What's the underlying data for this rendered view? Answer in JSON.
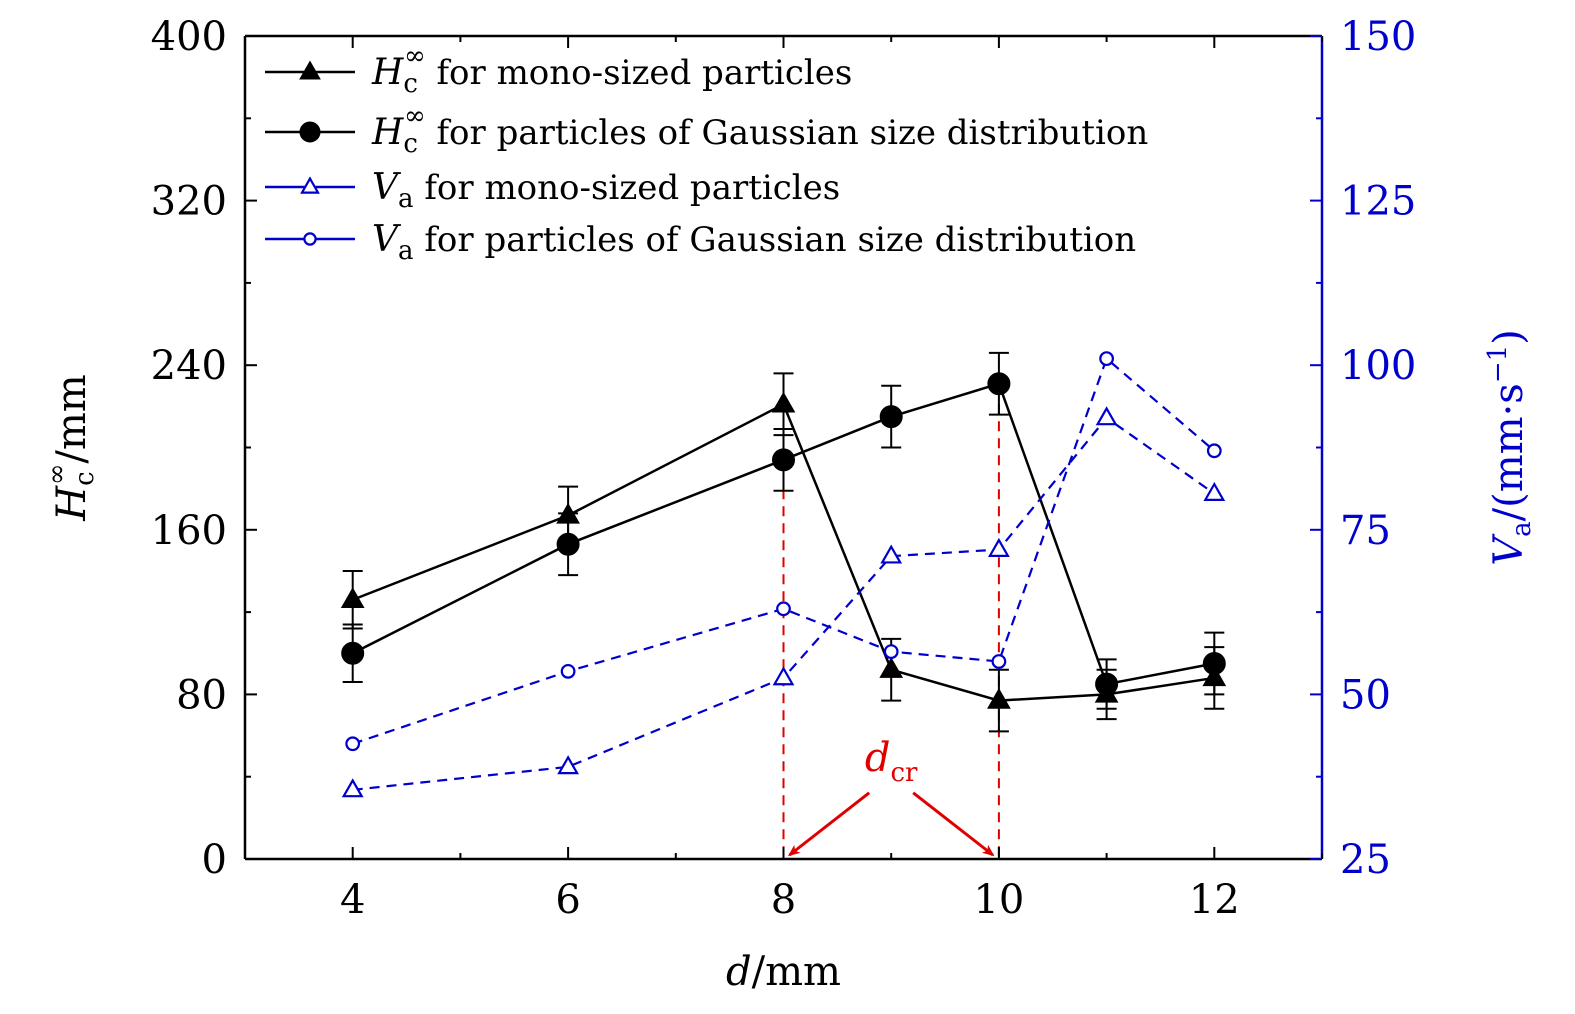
{
  "colors": {
    "black": "#000000",
    "blue": "#0000cc",
    "red": "#e00000"
  },
  "chart_data": {
    "type": "line",
    "xlabel": {
      "var": "d",
      "unit": "/mm"
    },
    "ylabel_left": {
      "var": "H",
      "sub": "c",
      "sup": "∞",
      "unit": "/mm"
    },
    "ylabel_right": {
      "var": "V",
      "sub": "a",
      "unit": "/(mm·s",
      "sup": "−1",
      "close": ")"
    },
    "xlim": [
      3,
      13
    ],
    "ylim_left": [
      0,
      400
    ],
    "ylim_right": [
      25,
      150
    ],
    "x_ticks": [
      4,
      6,
      8,
      10,
      12
    ],
    "x_tick_labels": [
      "4",
      "6",
      "8",
      "10",
      "12"
    ],
    "y_left_ticks": [
      0,
      80,
      160,
      240,
      320,
      400
    ],
    "y_left_tick_labels": [
      "0",
      "80",
      "160",
      "240",
      "320",
      "400"
    ],
    "y_right_ticks": [
      25,
      50,
      75,
      100,
      125,
      150
    ],
    "y_right_tick_labels": [
      "25",
      "50",
      "75",
      "100",
      "125",
      "150"
    ],
    "legend_position": "top-left",
    "series": [
      {
        "name": "for mono-sized particles",
        "legend_var": "H",
        "legend_sub": "c",
        "legend_sup": "∞",
        "axis": "left",
        "marker": "triangle",
        "filled": true,
        "dashed": false,
        "color": "#000000",
        "x": [
          4,
          6,
          8,
          9,
          10,
          11,
          12
        ],
        "y": [
          126,
          167,
          221,
          92,
          77,
          80,
          88
        ],
        "err": [
          14,
          14,
          15,
          15,
          15,
          12,
          15
        ]
      },
      {
        "name": "for particles of Gaussian size distribution",
        "legend_var": "H",
        "legend_sub": "c",
        "legend_sup": "∞",
        "axis": "left",
        "marker": "circle",
        "filled": true,
        "dashed": false,
        "color": "#000000",
        "x": [
          4,
          6,
          8,
          9,
          10,
          11,
          12
        ],
        "y": [
          100,
          153,
          194,
          215,
          231,
          85,
          95
        ],
        "err": [
          14,
          15,
          15,
          15,
          15,
          12,
          15
        ]
      },
      {
        "name": "for mono-sized particles",
        "legend_var": "V",
        "legend_sub": "a",
        "axis": "right",
        "marker": "triangle",
        "filled": false,
        "dashed": true,
        "color": "#0000cc",
        "x": [
          4,
          6,
          8,
          9,
          10,
          11,
          12
        ],
        "y": [
          35.5,
          39,
          52.5,
          71,
          72,
          92,
          80.5
        ]
      },
      {
        "name": "for particles of Gaussian size distribution",
        "legend_var": "V",
        "legend_sub": "a",
        "axis": "right",
        "marker": "circle",
        "filled": false,
        "dashed": true,
        "color": "#0000cc",
        "x": [
          4,
          6,
          8,
          9,
          10,
          11,
          12
        ],
        "y": [
          42.5,
          53.5,
          63,
          56.5,
          55,
          101,
          87
        ]
      }
    ],
    "annotations": [
      {
        "label_var": "d",
        "label_sub": "cr",
        "color": "#e00000",
        "vlines_x": [
          8,
          10
        ],
        "label_at": {
          "x": 9,
          "y": 38
        },
        "arrow_targets": [
          {
            "x": 8,
            "y": 0
          },
          {
            "x": 10,
            "y": 0
          }
        ]
      }
    ]
  }
}
